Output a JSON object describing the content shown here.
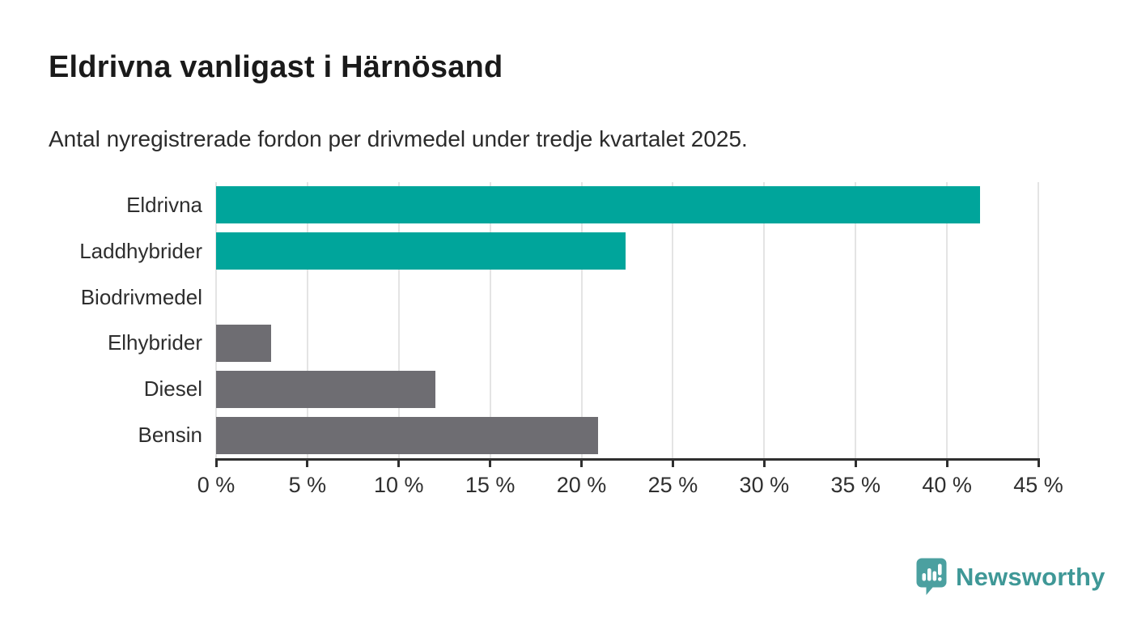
{
  "header": {
    "title": "Eldrivna vanligast i Härnösand",
    "subtitle": "Antal nyregistrerade fordon per drivmedel under tredje kvartalet 2025."
  },
  "chart_data": {
    "type": "bar",
    "orientation": "horizontal",
    "title": "Eldrivna vanligast i Härnösand",
    "subtitle": "Antal nyregistrerade fordon per drivmedel under tredje kvartalet 2025.",
    "categories": [
      "Eldrivna",
      "Laddhybrider",
      "Biodrivmedel",
      "Elhybrider",
      "Diesel",
      "Bensin"
    ],
    "values": [
      41.8,
      22.4,
      0,
      3.0,
      12.0,
      20.9
    ],
    "unit": "%",
    "bar_colors": [
      "#00A59B",
      "#00A59B",
      "#6E6D72",
      "#6E6D72",
      "#6E6D72",
      "#6E6D72"
    ],
    "xlim": [
      0,
      45
    ],
    "x_ticks": [
      0,
      5,
      10,
      15,
      20,
      25,
      30,
      35,
      40,
      45
    ],
    "x_tick_labels": [
      "0 %",
      "5 %",
      "10 %",
      "15 %",
      "20 %",
      "25 %",
      "30 %",
      "35 %",
      "40 %",
      "45 %"
    ],
    "grid": "vertical-on",
    "legend": "none",
    "xlabel": "",
    "ylabel": ""
  },
  "branding": {
    "logo_text": "Newsworthy",
    "logo_text_color": "#3F9897",
    "logo_icon_color": "#4BA0A0",
    "logo_icon": "speech-bubble-bar-chart-exclamation"
  },
  "colors": {
    "background": "#FFFFFF",
    "accent_teal": "#00A59B",
    "neutral_gray": "#6E6D72",
    "axis": "#2F2F2F",
    "gridline": "#E4E4E4",
    "title_text": "#1A1A1A",
    "body_text": "#2E2E2E"
  }
}
